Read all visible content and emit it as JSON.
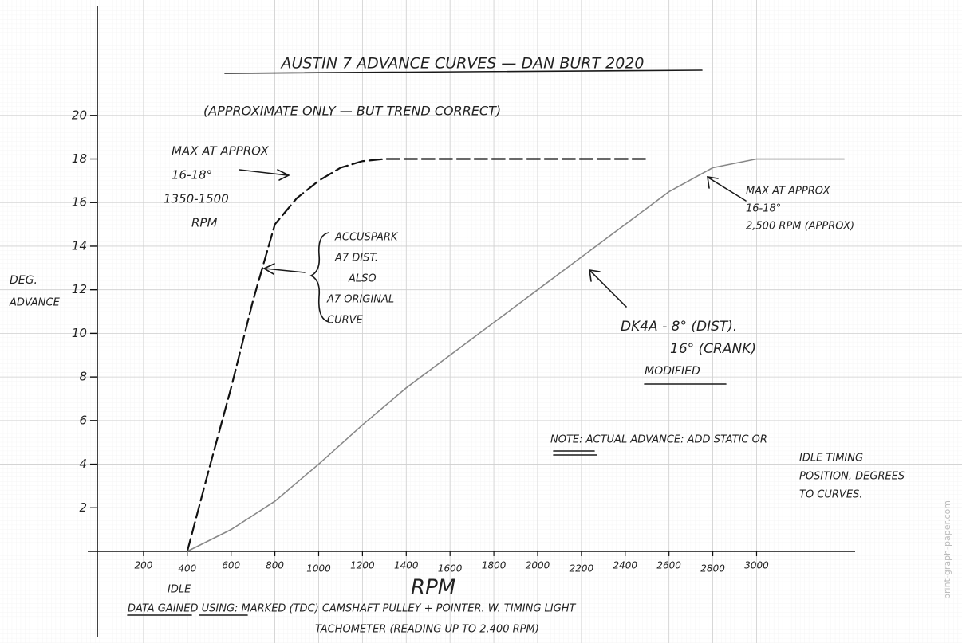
{
  "chart_data": {
    "type": "line",
    "title": "AUSTIN 7 ADVANCE CURVES — DAN BURT 2020",
    "subtitle": "(APPROXIMATE ONLY — BUT TREND CORRECT)",
    "x_label": "RPM",
    "y_label": [
      "DEG.",
      "ADVANCE"
    ],
    "xlim": [
      0,
      3450
    ],
    "ylim": [
      0,
      25
    ],
    "xticks": [
      200,
      400,
      600,
      800,
      1000,
      1200,
      1400,
      1600,
      1800,
      2000,
      2200,
      2400,
      2600,
      2800,
      3000
    ],
    "yticks": [
      2,
      4,
      6,
      8,
      10,
      12,
      14,
      16,
      18,
      20
    ],
    "grid": true,
    "series": [
      {
        "color": "#111111",
        "dashed": true,
        "x": [
          400,
          500,
          600,
          700,
          800,
          900,
          1000,
          1100,
          1200,
          1300,
          1600,
          2000,
          2500
        ],
        "values": [
          0,
          3.8,
          7.5,
          11.5,
          15,
          16.2,
          17,
          17.6,
          17.9,
          18,
          18,
          18,
          18
        ]
      },
      {
        "color": "#888888",
        "dashed": false,
        "x": [
          400,
          600,
          800,
          1000,
          1200,
          1400,
          1600,
          1800,
          2000,
          2200,
          2400,
          2600,
          2800,
          3000,
          3400
        ],
        "values": [
          0,
          1,
          2.3,
          4,
          5.8,
          7.5,
          9,
          10.5,
          12,
          13.5,
          15,
          16.5,
          17.6,
          18,
          18
        ]
      }
    ],
    "annotations": [
      {
        "lines": [
          "MAX AT APPROX",
          "16-18°",
          "1350-1500",
          "RPM"
        ]
      },
      {
        "lines": [
          "ACCUSPARK",
          "A7 DIST.",
          "ALSO",
          "A7 ORIGINAL",
          "CURVE"
        ]
      },
      {
        "lines": [
          "MAX AT APPROX",
          "16-18°",
          "2,500 RPM (APPROX)"
        ]
      },
      {
        "lines": [
          "DK4A - 8° (DIST).",
          "16° (CRANK)"
        ]
      },
      {
        "lines": [
          "MODIFIED"
        ]
      },
      {
        "lines": [
          "NOTE: ACTUAL ADVANCE: ADD STATIC OR",
          "IDLE TIMING",
          "POSITION, DEGREES",
          "TO CURVES."
        ]
      },
      {
        "lines": [
          "IDLE"
        ]
      },
      {
        "lines": [
          "DATA GAINED USING: MARKED (TDC) CAMSHAFT PULLEY + POINTER. W. TIMING LIGHT",
          "TACHOMETER (READING UP TO 2,400 RPM)"
        ]
      },
      {
        "lines": [
          "print-graph-paper.com"
        ]
      }
    ]
  }
}
